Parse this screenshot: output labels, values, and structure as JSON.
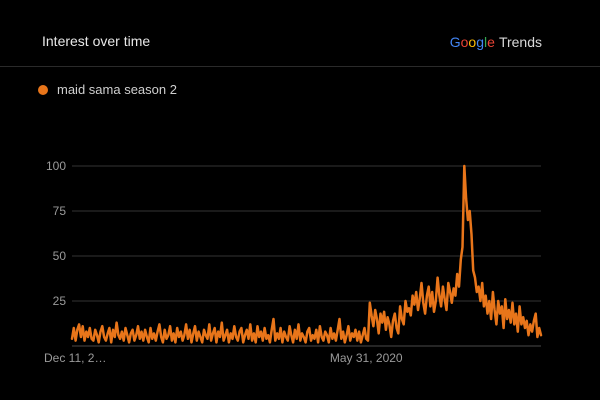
{
  "header": {
    "title": "Interest over time",
    "brand": {
      "letters": [
        "G",
        "o",
        "o",
        "g",
        "l",
        "e"
      ],
      "product": "Trends"
    }
  },
  "colors": {
    "series": "#e8751a",
    "grid": "#333333",
    "brand": [
      "#4285f4",
      "#ea4335",
      "#fbbc05",
      "#4285f4",
      "#34a853",
      "#ea4335"
    ]
  },
  "chart_data": {
    "type": "line",
    "title": "Interest over time",
    "series": [
      {
        "name": "maid sama season 2",
        "color": "#e8751a",
        "values": [
          4,
          10,
          3,
          9,
          12,
          5,
          11,
          3,
          8,
          5,
          10,
          4,
          3,
          9,
          6,
          2,
          8,
          11,
          5,
          3,
          7,
          10,
          2,
          9,
          5,
          13,
          6,
          4,
          8,
          3,
          10,
          6,
          2,
          7,
          9,
          3,
          6,
          11,
          4,
          8,
          3,
          9,
          5,
          2,
          10,
          4,
          7,
          3,
          8,
          12,
          5,
          2,
          9,
          4,
          6,
          11,
          3,
          7,
          2,
          10,
          5,
          8,
          3,
          6,
          12,
          4,
          9,
          2,
          7,
          11,
          3,
          8,
          5,
          2,
          9,
          6,
          4,
          12,
          3,
          7,
          10,
          2,
          8,
          5,
          13,
          3,
          6,
          9,
          2,
          7,
          4,
          11,
          5,
          3,
          8,
          10,
          2,
          6,
          9,
          4,
          12,
          3,
          7,
          2,
          11,
          5,
          8,
          3,
          10,
          4,
          6,
          2,
          9,
          15,
          3,
          7,
          4,
          10,
          2,
          8,
          5,
          3,
          11,
          6,
          2,
          9,
          4,
          12,
          3,
          7,
          5,
          2,
          8,
          10,
          3,
          6,
          4,
          9,
          2,
          11,
          5,
          3,
          8,
          6,
          2,
          10,
          4,
          7,
          3,
          9,
          15,
          4,
          8,
          2,
          6,
          11,
          3,
          7,
          5,
          9,
          3,
          8,
          2,
          6,
          10,
          4,
          3,
          24,
          17,
          11,
          20,
          15,
          7,
          18,
          13,
          19,
          9,
          16,
          12,
          5,
          14,
          18,
          10,
          7,
          22,
          15,
          12,
          25,
          19,
          21,
          17,
          28,
          23,
          30,
          20,
          26,
          35,
          24,
          18,
          28,
          33,
          22,
          30,
          19,
          25,
          38,
          28,
          22,
          33,
          26,
          20,
          35,
          30,
          24,
          32,
          28,
          40,
          33,
          48,
          55,
          100,
          82,
          70,
          75,
          62,
          42,
          38,
          30,
          33,
          25,
          35,
          22,
          28,
          18,
          25,
          15,
          30,
          20,
          12,
          25,
          18,
          22,
          10,
          26,
          15,
          20,
          13,
          24,
          12,
          18,
          8,
          22,
          12,
          16,
          10,
          14,
          6,
          12,
          8,
          14,
          18,
          5,
          10,
          6
        ]
      }
    ],
    "x_start_label": "Dec 11, 2…",
    "x_tick_labels": [
      {
        "label": "Dec 11, 2…",
        "index": 0
      },
      {
        "label": "May 31, 2020",
        "index": 165
      }
    ],
    "y_ticks": [
      25,
      50,
      75,
      100
    ],
    "ylim": [
      0,
      100
    ],
    "grid": true,
    "legend_position": "top-left"
  }
}
